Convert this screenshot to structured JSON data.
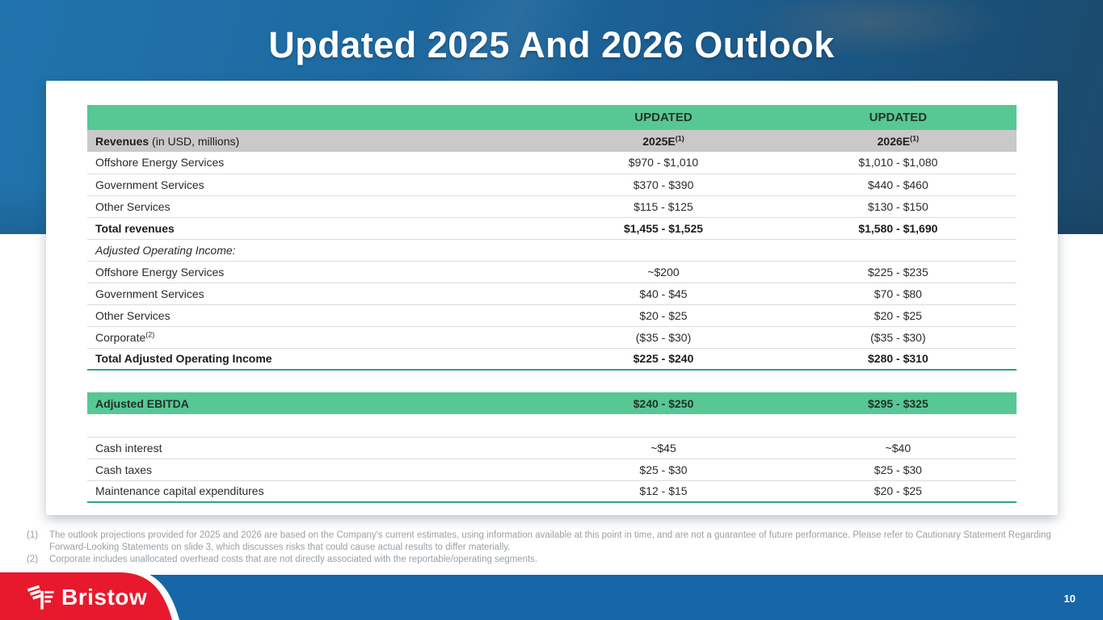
{
  "slide": {
    "title": "Updated 2025 And 2026 Outlook"
  },
  "table": {
    "header": {
      "updated": "UPDATED",
      "year_2025": "2025E",
      "year_2026": "2026E",
      "year_sup": "(1)",
      "revenues_label": "Revenues",
      "revenues_unit": " (in USD, millions)"
    },
    "rows": [
      {
        "label": "Offshore Energy Services",
        "sup": "",
        "c2": "$970 - $1,010",
        "c3": "$1,010 - $1,080",
        "style": "normal",
        "border": ""
      },
      {
        "label": "Government Services",
        "sup": "",
        "c2": "$370 - $390",
        "c3": "$440 - $460",
        "style": "normal",
        "border": ""
      },
      {
        "label": "Other Services",
        "sup": "",
        "c2": "$115 - $125",
        "c3": "$130 - $150",
        "style": "normal",
        "border": ""
      },
      {
        "label": "Total revenues",
        "sup": "",
        "c2": "$1,455 - $1,525",
        "c3": "$1,580 - $1,690",
        "style": "bold",
        "border": ""
      },
      {
        "label": "Adjusted Operating Income:",
        "sup": "",
        "c2": "",
        "c3": "",
        "style": "italic",
        "border": ""
      },
      {
        "label": "Offshore Energy Services",
        "sup": "",
        "c2": "~$200",
        "c3": "$225 - $235",
        "style": "normal",
        "border": ""
      },
      {
        "label": "Government Services",
        "sup": "",
        "c2": "$40 - $45",
        "c3": "$70 - $80",
        "style": "normal",
        "border": ""
      },
      {
        "label": "Other Services",
        "sup": "",
        "c2": "$20 - $25",
        "c3": "$20 - $25",
        "style": "normal",
        "border": ""
      },
      {
        "label": "Corporate",
        "sup": "(2)",
        "c2": "($35 - $30)",
        "c3": "($35 - $30)",
        "style": "normal",
        "border": ""
      },
      {
        "label": "Total Adjusted Operating Income",
        "sup": "",
        "c2": "$225 - $240",
        "c3": "$280 - $310",
        "style": "bold",
        "border": "teal"
      },
      {
        "label": "",
        "sup": "",
        "c2": "",
        "c3": "",
        "style": "spacer",
        "border": ""
      },
      {
        "label": "Adjusted EBITDA",
        "sup": "",
        "c2": "$240 - $250",
        "c3": "$295 - $325",
        "style": "band",
        "border": ""
      },
      {
        "label": "",
        "sup": "",
        "c2": "",
        "c3": "",
        "style": "spacer",
        "border": "light"
      },
      {
        "label": "Cash interest",
        "sup": "",
        "c2": "~$45",
        "c3": "~$40",
        "style": "normal",
        "border": ""
      },
      {
        "label": "Cash taxes",
        "sup": "",
        "c2": "$25 - $30",
        "c3": "$25 - $30",
        "style": "normal",
        "border": ""
      },
      {
        "label": "Maintenance capital expenditures",
        "sup": "",
        "c2": "$12 - $15",
        "c3": "$20 - $25",
        "style": "normal",
        "border": "teal"
      }
    ]
  },
  "footnotes": [
    {
      "num": "(1)",
      "text": "The outlook projections provided for 2025 and 2026 are based on the Company's current estimates, using information available at this point in time, and are not a guarantee of future performance. Please refer to Cautionary Statement Regarding Forward-Looking Statements on slide 3, which discusses risks that could cause actual results to differ materially."
    },
    {
      "num": "(2)",
      "text": "Corporate includes unallocated overhead costs that are not directly associated with the reportable/operating segments."
    }
  ],
  "footer": {
    "brand": "Bristow",
    "page_number": "10"
  },
  "colors": {
    "accent_green": "#57c894",
    "band_gray": "#c9c9c9",
    "teal_rule": "#2fa08c",
    "hero_blue": "#1e6ba3",
    "footer_blue": "#1767a8",
    "logo_red": "#e8192c"
  }
}
